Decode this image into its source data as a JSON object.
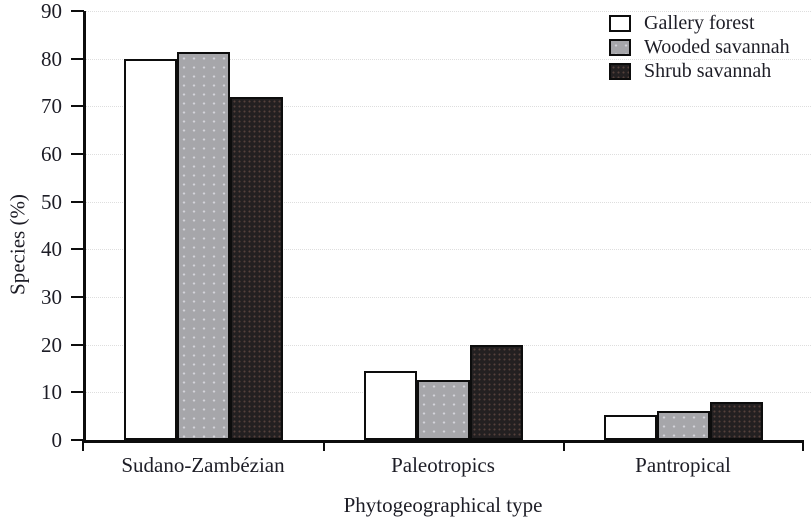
{
  "chart_data": {
    "type": "bar",
    "title": "",
    "xlabel": "Phytogeographical type",
    "ylabel": "Species (%)",
    "categories": [
      "Sudano-Zambézian",
      "Paleotropics",
      "Pantropical"
    ],
    "series": [
      {
        "name": "Gallery forest",
        "values": [
          80,
          14.5,
          5.3
        ]
      },
      {
        "name": "Wooded savannah",
        "values": [
          81.5,
          12.5,
          6.1
        ]
      },
      {
        "name": "Shrub savannah",
        "values": [
          72,
          20,
          7.9
        ]
      }
    ],
    "ylim": [
      0,
      90
    ],
    "yticks": [
      0,
      10,
      20,
      30,
      40,
      50,
      60,
      70,
      80,
      90
    ],
    "grid": "horizontal-dotted",
    "legend_position": "top-right",
    "colors": {
      "gallery_forest": "#ffffff",
      "wooded_savannah": "#a6a6aa",
      "wooded_savannah_dot": "#d3d3da",
      "shrub_savannah": "#232021",
      "shrub_savannah_dot": "#55413b",
      "axis": "#0d0d0d",
      "gridline": "#dedede",
      "text": "#1d1d26"
    }
  }
}
